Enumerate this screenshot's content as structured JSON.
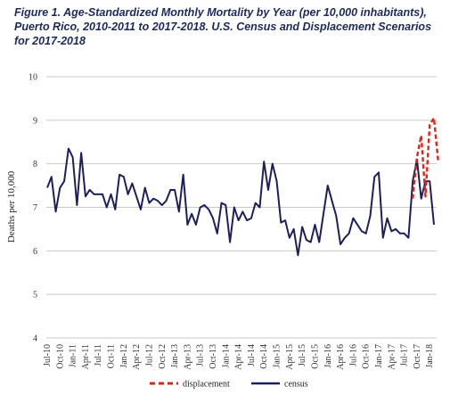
{
  "title": "Figure 1. Age-Standardized Monthly Mortality by Year (per 10,000 inhabitants), Puerto Rico, 2010-2011 to 2017-2018. U.S. Census and Displacement Scenarios for 2017-2018",
  "colors": {
    "census": "#1b1f5c",
    "displacement": "#d9261c",
    "grid": "#c8c8c8",
    "title": "#1c2a5b"
  },
  "chart_data": {
    "type": "line",
    "ylabel": "Deaths per 10,000",
    "xlabel": "",
    "ylim": [
      4,
      10
    ],
    "yticks": [
      4,
      5,
      6,
      7,
      8,
      9,
      10
    ],
    "grid": "horizontal",
    "legend_position": "bottom",
    "x_tick_labels": [
      "Jul-10",
      "Oct-10",
      "Jan-11",
      "Apr-11",
      "Jul-11",
      "Oct-11",
      "Jan-12",
      "Apr-12",
      "Jul-12",
      "Oct-12",
      "Jan-13",
      "Apr-13",
      "Jul-13",
      "Oct-13",
      "Jan-14",
      "Apr-14",
      "Jul-14",
      "Oct-14",
      "Jan-15",
      "Apr-15",
      "Jul-15",
      "Oct-15",
      "Jan-16",
      "Apr-16",
      "Jul-16",
      "Oct-16",
      "Jan-17",
      "Apr-17",
      "Jul-17",
      "Oct-17",
      "Jan-18"
    ],
    "series": [
      {
        "name": "census",
        "style": "solid",
        "start": "Jul-10",
        "values": [
          7.45,
          7.7,
          6.9,
          7.45,
          7.6,
          8.35,
          8.15,
          7.05,
          8.25,
          7.25,
          7.4,
          7.3,
          7.3,
          7.3,
          7.0,
          7.3,
          6.95,
          7.75,
          7.7,
          7.3,
          7.55,
          7.25,
          6.95,
          7.45,
          7.1,
          7.2,
          7.15,
          7.05,
          7.15,
          7.4,
          7.4,
          6.9,
          7.75,
          6.6,
          6.85,
          6.6,
          7.0,
          7.05,
          6.95,
          6.75,
          6.4,
          7.1,
          7.05,
          6.2,
          7.0,
          6.7,
          6.9,
          6.7,
          6.75,
          7.1,
          7.0,
          8.05,
          7.4,
          8.0,
          7.6,
          6.65,
          6.7,
          6.3,
          6.5,
          5.9,
          6.55,
          6.25,
          6.2,
          6.6,
          6.2,
          6.85,
          7.5,
          7.15,
          6.8,
          6.15,
          6.3,
          6.4,
          6.75,
          6.6,
          6.45,
          6.4,
          6.8,
          7.7,
          7.8,
          6.3,
          6.75,
          6.45,
          6.5,
          6.4,
          6.4,
          6.3,
          7.6,
          8.1,
          7.2,
          7.6,
          7.6,
          6.6
        ]
      },
      {
        "name": "displacement",
        "style": "dashed",
        "start": "Sep-17",
        "values": [
          7.2,
          8.15,
          8.65,
          7.25,
          8.9,
          9.05,
          8.05
        ]
      }
    ]
  },
  "legend": [
    {
      "name": "displacement",
      "label": "displacement",
      "style": "dashed"
    },
    {
      "name": "census",
      "label": "census",
      "style": "solid"
    }
  ]
}
